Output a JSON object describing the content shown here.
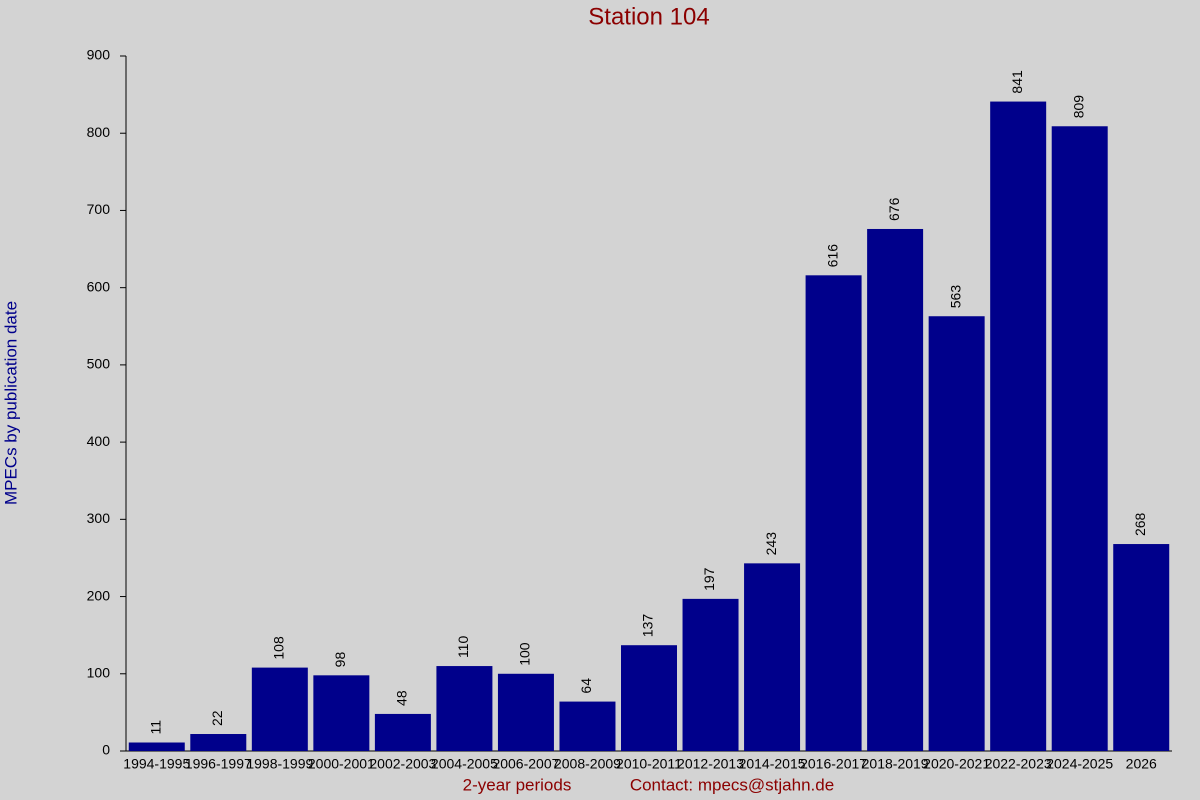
{
  "chart_data": {
    "type": "bar",
    "title": "Station 104",
    "y_label": "MPECs by publication date",
    "x_label": "2-year periods",
    "contact": "Contact: mpecs@stjahn.de",
    "categories": [
      "1994-1995",
      "1996-1997",
      "1998-1999",
      "2000-2001",
      "2002-2003",
      "2004-2005",
      "2006-2007",
      "2008-2009",
      "2010-2011",
      "2012-2013",
      "2014-2015",
      "2016-2017",
      "2018-2019",
      "2020-2021",
      "2022-2023",
      "2024-2025",
      "2026"
    ],
    "values": [
      11,
      22,
      108,
      98,
      48,
      110,
      100,
      64,
      137,
      197,
      243,
      616,
      676,
      563,
      841,
      809,
      268
    ],
    "color": "#00008b",
    "ylim": [
      0,
      900
    ],
    "yticks": [
      0,
      100,
      200,
      300,
      400,
      500,
      600,
      700,
      800,
      900
    ]
  }
}
